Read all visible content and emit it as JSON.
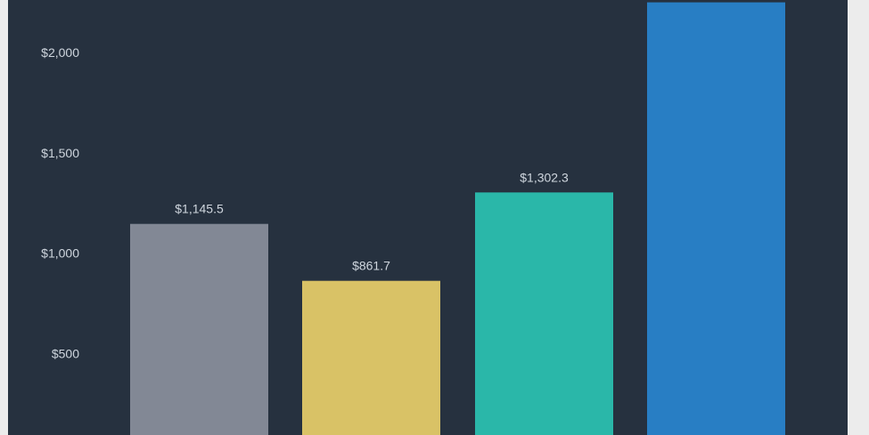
{
  "chart_data": {
    "type": "bar",
    "categories": [
      "",
      "",
      "",
      ""
    ],
    "values": [
      1145.5,
      861.7,
      1302.3,
      2250
    ],
    "data_labels": [
      "$1,145.5",
      "$861.7",
      "$1,302.3",
      ""
    ],
    "colors": [
      "#828895",
      "#d9c266",
      "#2ab7a9",
      "#287ec4"
    ],
    "y_ticks": [
      500,
      1000,
      1500,
      2000
    ],
    "y_tick_labels": [
      "$500",
      "$1,000",
      "$1,500",
      "$2,000"
    ],
    "ylim": [
      0,
      2170
    ],
    "grid": false,
    "title": "",
    "xlabel": "",
    "ylabel": ""
  },
  "theme": {
    "background": "#26313f",
    "outer_background": "#ececec",
    "text_color": "#cfd6de"
  }
}
